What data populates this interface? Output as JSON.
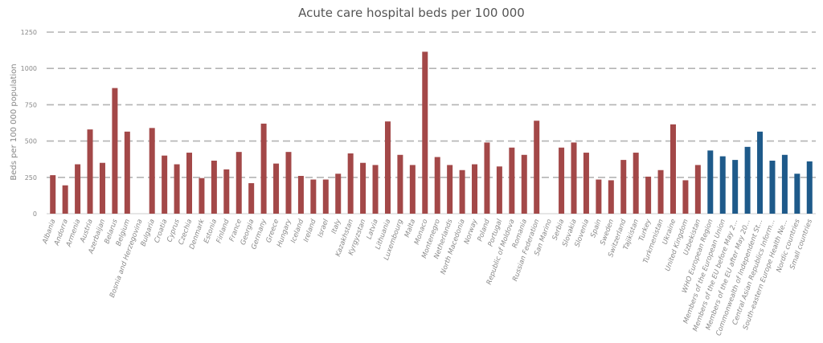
{
  "chart_data": {
    "type": "bar",
    "title": "Acute care hospital beds per 100 000",
    "ylabel": "Beds per 100 000 population",
    "xlabel": "",
    "ylim": [
      0,
      1250
    ],
    "yticks": [
      0,
      250,
      500,
      750,
      1000,
      1250
    ],
    "grid": true,
    "colors": {
      "country": "#a34848",
      "aggregate": "#1e5a8a",
      "grid": "#b4b4b4"
    },
    "categories": [
      "Albania",
      "Andorra",
      "Armenia",
      "Austria",
      "Azerbaijan",
      "Belarus",
      "Belgium",
      "Bosnia and Herzegovina",
      "Bulgaria",
      "Croatia",
      "Cyprus",
      "Czechia",
      "Denmark",
      "Estonia",
      "Finland",
      "France",
      "Georgia",
      "Germany",
      "Greece",
      "Hungary",
      "Iceland",
      "Ireland",
      "Israel",
      "Italy",
      "Kazakhstan",
      "Kyrgyzstan",
      "Latvia",
      "Lithuania",
      "Luxembourg",
      "Malta",
      "Monaco",
      "Montenegro",
      "Netherlands",
      "North Macedonia",
      "Norway",
      "Poland",
      "Portugal",
      "Republic of Moldova",
      "Romania",
      "Russian Federation",
      "San Marino",
      "Serbia",
      "Slovakia",
      "Slovenia",
      "Spain",
      "Sweden",
      "Switzerland",
      "Tajikistan",
      "Turkey",
      "Turkmenistan",
      "Ukraine",
      "United Kingdom",
      "Uzbekistan",
      "WHO European Region",
      "Members of the European Union",
      "Members of the EU before May 2...",
      "Members of the EU after May 20...",
      "Commonwealth of Independent St...",
      "Central Asian Republics Inform...",
      "South-eastern Europe Health Ne...",
      "Nordic countries",
      "Small countries"
    ],
    "values": [
      265,
      195,
      340,
      580,
      350,
      865,
      565,
      null,
      590,
      400,
      340,
      420,
      245,
      365,
      305,
      425,
      210,
      620,
      345,
      425,
      260,
      235,
      235,
      275,
      415,
      350,
      335,
      635,
      405,
      335,
      1115,
      390,
      335,
      300,
      340,
      490,
      325,
      455,
      405,
      640,
      null,
      455,
      490,
      420,
      235,
      230,
      370,
      420,
      255,
      300,
      615,
      230,
      335,
      435,
      395,
      370,
      460,
      565,
      365,
      405,
      275,
      360
    ],
    "aggregate_start_index": 53
  }
}
